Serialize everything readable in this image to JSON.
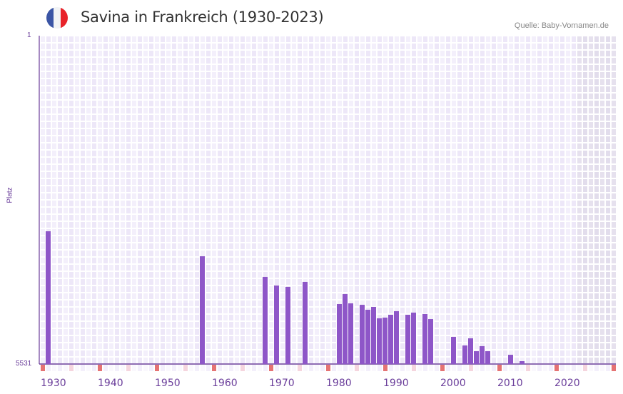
{
  "header": {
    "title": "Savina in Frankreich (1930-2023)",
    "source": "Quelle: Baby-Vornamen.de",
    "flag_colors": [
      "#3b55a5",
      "#f1f3f5",
      "#e8232a"
    ]
  },
  "chart_data": {
    "type": "bar",
    "title": "Savina in Frankreich (1930-2023)",
    "xlabel": "",
    "ylabel": "Platz",
    "ylim": [
      1,
      5531
    ],
    "y_inverted": true,
    "y_tick_labels": [
      "1",
      "5531"
    ],
    "x_range": [
      1930,
      2030
    ],
    "x_tick_labels": [
      "1930",
      "1940",
      "1950",
      "1960",
      "1970",
      "1980",
      "1990",
      "2000",
      "2010",
      "2020"
    ],
    "data_end_year": 2023,
    "bar_color": "#8e56c8",
    "points": [
      {
        "year": 1931,
        "rank": 3295
      },
      {
        "year": 1958,
        "rank": 3716
      },
      {
        "year": 1969,
        "rank": 4064
      },
      {
        "year": 1971,
        "rank": 4208
      },
      {
        "year": 1973,
        "rank": 4232
      },
      {
        "year": 1976,
        "rank": 4148
      },
      {
        "year": 1982,
        "rank": 4521
      },
      {
        "year": 1983,
        "rank": 4353
      },
      {
        "year": 1984,
        "rank": 4509
      },
      {
        "year": 1986,
        "rank": 4533
      },
      {
        "year": 1987,
        "rank": 4617
      },
      {
        "year": 1988,
        "rank": 4569
      },
      {
        "year": 1989,
        "rank": 4761
      },
      {
        "year": 1990,
        "rank": 4749
      },
      {
        "year": 1991,
        "rank": 4701
      },
      {
        "year": 1992,
        "rank": 4641
      },
      {
        "year": 1994,
        "rank": 4701
      },
      {
        "year": 1995,
        "rank": 4665
      },
      {
        "year": 1997,
        "rank": 4689
      },
      {
        "year": 1998,
        "rank": 4774
      },
      {
        "year": 2002,
        "rank": 5074
      },
      {
        "year": 2004,
        "rank": 5218
      },
      {
        "year": 2005,
        "rank": 5098
      },
      {
        "year": 2006,
        "rank": 5315
      },
      {
        "year": 2007,
        "rank": 5230
      },
      {
        "year": 2008,
        "rank": 5315
      },
      {
        "year": 2012,
        "rank": 5375
      },
      {
        "year": 2014,
        "rank": 5483
      }
    ]
  }
}
